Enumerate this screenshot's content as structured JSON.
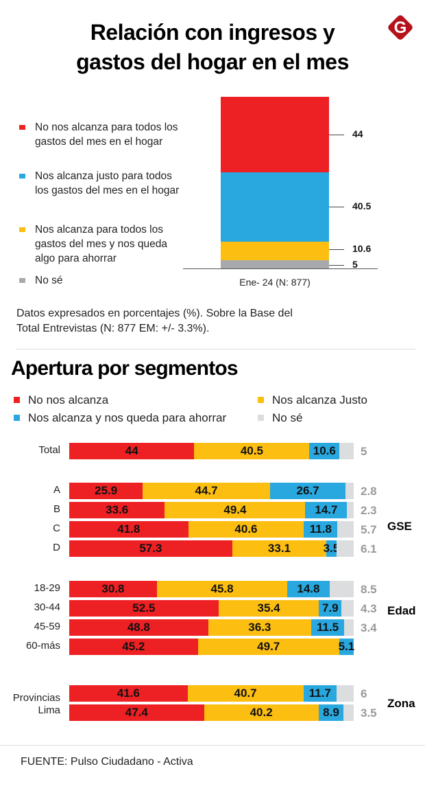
{
  "header": {
    "title_line1": "Relación con ingresos y",
    "title_line2": "gastos del hogar en el mes",
    "logo_letter": "G"
  },
  "colors": {
    "red": "#ED2024",
    "blue": "#29A8E0",
    "yellow": "#FDBE12",
    "gray_top": "#A7A9AC",
    "gray_seg": "#DCDDDE",
    "logo": "#B5121B"
  },
  "chart_data": [
    {
      "type": "bar",
      "stacked": true,
      "orientation": "vertical",
      "title": "Relación con ingresos y gastos del hogar en el mes",
      "categories": [
        "Ene- 24 (N: 877)"
      ],
      "series": [
        {
          "name": "No nos alcanza para todos los gastos del mes en el hogar",
          "color": "#ED2024",
          "values": [
            44
          ]
        },
        {
          "name": "Nos alcanza justo para todos los gastos del mes en el hogar",
          "color": "#29A8E0",
          "values": [
            40.5
          ]
        },
        {
          "name": "Nos alcanza para todos los gastos del mes y nos queda algo para ahorrar",
          "color": "#FDBE12",
          "values": [
            10.6
          ]
        },
        {
          "name": "No sé",
          "color": "#A7A9AC",
          "values": [
            5
          ]
        }
      ],
      "value_labels": [
        "44",
        "40.5",
        "10.6",
        "5"
      ],
      "legend": [
        {
          "label": "No nos alcanza para todos los gastos del mes en el hogar",
          "color": "#ED2024"
        },
        {
          "label": "Nos alcanza justo para todos los gastos del mes en el hogar",
          "color": "#29A8E0"
        },
        {
          "label": "Nos alcanza para todos los gastos del mes y nos queda algo para ahorrar",
          "color": "#FDBE12"
        },
        {
          "label": "No sé",
          "color": "#A7A9AC"
        }
      ],
      "legend_position": "left",
      "xlabel": "Ene- 24 (N: 877)",
      "units": "%"
    },
    {
      "type": "bar",
      "stacked": true,
      "orientation": "horizontal",
      "title": "Apertura por segmentos",
      "legend": [
        {
          "label": "No nos alcanza",
          "color": "#ED2024"
        },
        {
          "label": "Nos alcanza y nos queda para ahorrar",
          "color": "#29A8E0"
        },
        {
          "label": "Nos alcanza Justo",
          "color": "#FDBE12"
        },
        {
          "label": "No sé",
          "color": "#DCDDDE"
        }
      ],
      "legend_position": "top",
      "segment_colors": [
        "#ED2024",
        "#FDBE12",
        "#29A8E0",
        "#DCDDDE"
      ],
      "groups": [
        {
          "name": "",
          "rows": [
            {
              "label": "Total",
              "values": [
                44,
                40.5,
                10.6,
                5
              ],
              "labels": [
                "44",
                "40.5",
                "10.6",
                "5"
              ]
            }
          ]
        },
        {
          "name": "GSE",
          "rows": [
            {
              "label": "A",
              "values": [
                25.9,
                44.7,
                26.7,
                2.8
              ],
              "labels": [
                "25.9",
                "44.7",
                "26.7",
                "2.8"
              ]
            },
            {
              "label": "B",
              "values": [
                33.6,
                49.4,
                14.7,
                2.3
              ],
              "labels": [
                "33.6",
                "49.4",
                "14.7",
                "2.3"
              ]
            },
            {
              "label": "C",
              "values": [
                41.8,
                40.6,
                11.8,
                5.7
              ],
              "labels": [
                "41.8",
                "40.6",
                "11.8",
                "5.7"
              ]
            },
            {
              "label": "D",
              "values": [
                57.3,
                33.1,
                3.5,
                6.1
              ],
              "labels": [
                "57.3",
                "33.1",
                "3.5",
                "6.1"
              ]
            }
          ]
        },
        {
          "name": "Edad",
          "rows": [
            {
              "label": "18-29",
              "values": [
                30.8,
                45.8,
                14.8,
                8.5
              ],
              "labels": [
                "30.8",
                "45.8",
                "14.8",
                "8.5"
              ]
            },
            {
              "label": "30-44",
              "values": [
                52.5,
                35.4,
                7.9,
                4.3
              ],
              "labels": [
                "52.5",
                "35.4",
                "7.9",
                "4.3"
              ]
            },
            {
              "label": "45-59",
              "values": [
                48.8,
                36.3,
                11.5,
                3.4
              ],
              "labels": [
                "48.8",
                "36.3",
                "11.5",
                "3.4"
              ]
            },
            {
              "label": "60-más",
              "values": [
                45.2,
                49.7,
                5.1,
                0
              ],
              "labels": [
                "45.2",
                "49.7",
                "5.1",
                ""
              ]
            }
          ]
        },
        {
          "name": "Zona",
          "rows": [
            {
              "label": "Provincias",
              "values": [
                41.6,
                40.7,
                11.7,
                6
              ],
              "labels": [
                "41.6",
                "40.7",
                "11.7",
                "6"
              ]
            },
            {
              "label": "Lima",
              "values": [
                47.4,
                40.2,
                8.9,
                3.5
              ],
              "labels": [
                "47.4",
                "40.2",
                "8.9",
                "3.5"
              ]
            }
          ]
        }
      ],
      "xlim": [
        0,
        100
      ],
      "units": "%"
    }
  ],
  "note": {
    "line1": "Datos expresados en porcentajes (%). Sobre la Base del",
    "line2": "Total Entrevistas (N: 877 EM: +/- 3.3%)."
  },
  "footer": {
    "source": "FUENTE: Pulso Ciudadano - Activa"
  }
}
